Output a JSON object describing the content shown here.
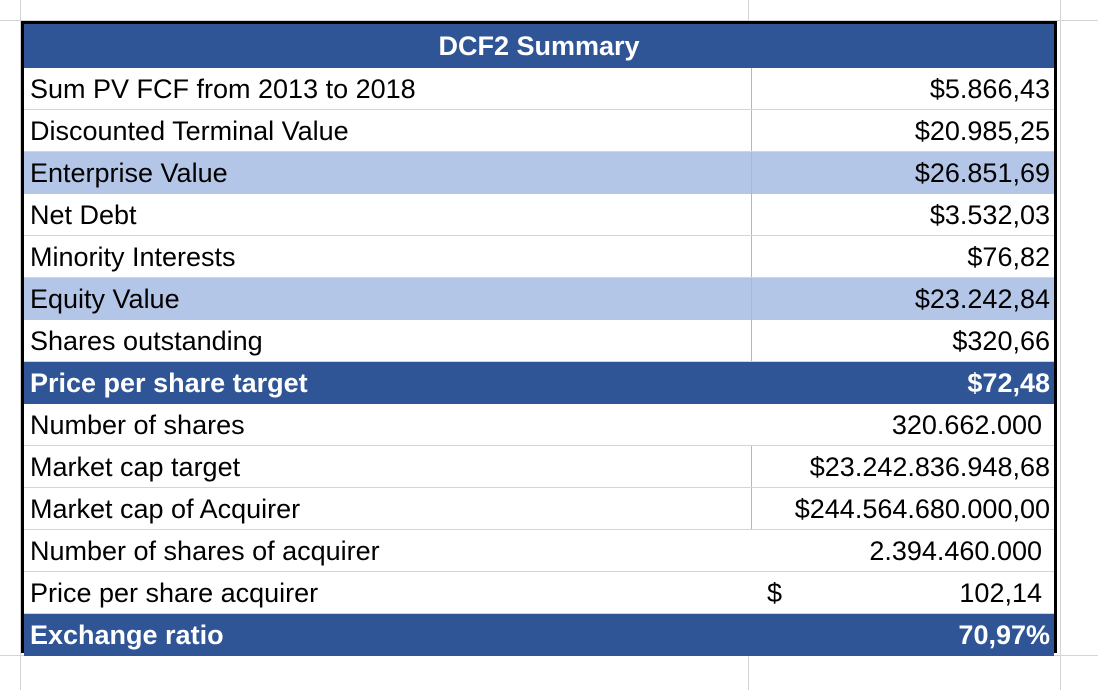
{
  "summary": {
    "title": "DCF2 Summary",
    "rows": [
      {
        "label": "Sum PV FCF from 2013 to 2018",
        "value": "$5.866,43"
      },
      {
        "label": "Discounted Terminal Value",
        "value": "$20.985,25"
      },
      {
        "label": "Enterprise Value",
        "value": "$26.851,69"
      },
      {
        "label": "Net Debt",
        "value": "$3.532,03"
      },
      {
        "label": "Minority Interests",
        "value": "$76,82"
      },
      {
        "label": "Equity Value",
        "value": "$23.242,84"
      },
      {
        "label": "Shares outstanding",
        "value": "$320,66"
      },
      {
        "label": "Price per share target",
        "value": "$72,48"
      },
      {
        "label": "Number of shares",
        "value": "320.662.000"
      },
      {
        "label": "Market cap target",
        "value": "$23.242.836.948,68"
      },
      {
        "label": "Market cap of Acquirer",
        "value": "$244.564.680.000,00"
      },
      {
        "label": "Number of shares of acquirer",
        "value": "2.394.460.000"
      },
      {
        "label": "Price per share acquirer",
        "currency": "$",
        "value": "102,14"
      },
      {
        "label": "Exchange ratio",
        "value": "70,97%"
      }
    ]
  },
  "colors": {
    "header_blue": "#2f5597",
    "highlight_blue": "#b4c6e7",
    "gridline": "#d4d4d4"
  }
}
